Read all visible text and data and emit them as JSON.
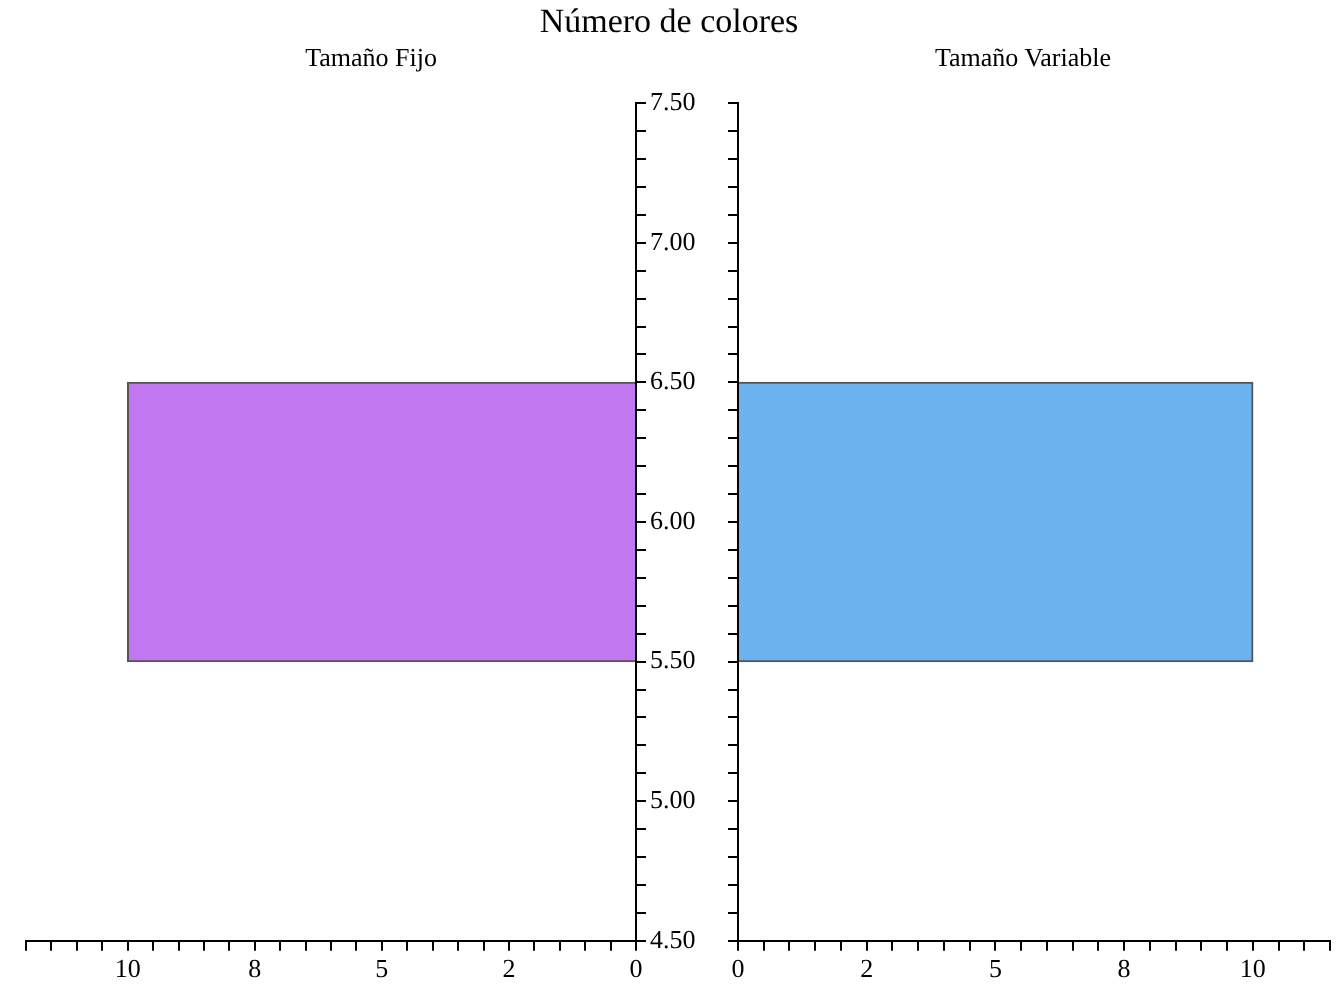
{
  "chart_data": [
    {
      "type": "bar",
      "orientation": "horizontal",
      "title": "Número de colores",
      "subtitle": "Tamaño Fijo",
      "x": [
        6
      ],
      "values": [
        10
      ],
      "color": "#c077ef",
      "xlim": [
        12,
        0
      ],
      "xticks": [
        0,
        {
          "value": 0.5,
          "label": null
        },
        {
          "value": 1,
          "label": null
        },
        {
          "value": 1.5,
          "label": null
        },
        {
          "value": 2,
          "label": null
        },
        {
          "value": 2.5,
          "label": "2"
        },
        {
          "value": 3,
          "label": null
        },
        {
          "value": 3.5,
          "label": null
        },
        {
          "value": 4,
          "label": null
        },
        {
          "value": 4.5,
          "label": null
        },
        5,
        {
          "value": 5.5,
          "label": null
        },
        {
          "value": 6,
          "label": null
        },
        {
          "value": 6.5,
          "label": null
        },
        {
          "value": 7,
          "label": null
        },
        {
          "value": 7.5,
          "label": "8"
        },
        {
          "value": 8,
          "label": null
        },
        {
          "value": 8.5,
          "label": null
        },
        {
          "value": 9,
          "label": null
        },
        {
          "value": 9.5,
          "label": null
        },
        10,
        {
          "value": 10.5,
          "label": null
        },
        {
          "value": 11,
          "label": null
        },
        {
          "value": 11.5,
          "label": null
        },
        {
          "value": 12,
          "label": null
        }
      ],
      "ylim": [
        4.5,
        7.5
      ],
      "yticks": [
        {
          "value": 4.5,
          "label": "4.50"
        },
        {
          "value": 4.6,
          "label": null
        },
        {
          "value": 4.7,
          "label": null
        },
        {
          "value": 4.8,
          "label": null
        },
        {
          "value": 4.9,
          "label": null
        },
        {
          "value": 5,
          "label": "5.00"
        },
        {
          "value": 5.1,
          "label": null
        },
        {
          "value": 5.2,
          "label": null
        },
        {
          "value": 5.3,
          "label": null
        },
        {
          "value": 5.4,
          "label": null
        },
        {
          "value": 5.5,
          "label": "5.50"
        },
        {
          "value": 5.6,
          "label": null
        },
        {
          "value": 5.7,
          "label": null
        },
        {
          "value": 5.8,
          "label": null
        },
        {
          "value": 5.9,
          "label": null
        },
        {
          "value": 6,
          "label": "6.00"
        },
        {
          "value": 6.1,
          "label": null
        },
        {
          "value": 6.2,
          "label": null
        },
        {
          "value": 6.3,
          "label": null
        },
        {
          "value": 6.4,
          "label": null
        },
        {
          "value": 6.5,
          "label": "6.50"
        },
        {
          "value": 6.6,
          "label": null
        },
        {
          "value": 6.7,
          "label": null
        },
        {
          "value": 6.8,
          "label": null
        },
        {
          "value": 6.9,
          "label": null
        },
        {
          "value": 7,
          "label": "7.00"
        },
        {
          "value": 7.1,
          "label": null
        },
        {
          "value": 7.2,
          "label": null
        },
        {
          "value": 7.3,
          "label": null
        },
        {
          "value": 7.4,
          "label": null
        },
        {
          "value": 7.5,
          "label": "7.50"
        }
      ],
      "grid": false
    },
    {
      "type": "bar",
      "orientation": "horizontal",
      "subtitle": "Tamaño Variable",
      "x": [
        6
      ],
      "values": [
        10
      ],
      "color": "#6ab3ee",
      "xlim": [
        0,
        11.5
      ],
      "xticks": [
        0,
        {
          "value": 0.5,
          "label": null
        },
        {
          "value": 1,
          "label": null
        },
        {
          "value": 1.5,
          "label": null
        },
        {
          "value": 2,
          "label": null
        },
        {
          "value": 2.5,
          "label": "2"
        },
        {
          "value": 3,
          "label": null
        },
        {
          "value": 3.5,
          "label": null
        },
        {
          "value": 4,
          "label": null
        },
        {
          "value": 4.5,
          "label": null
        },
        5,
        {
          "value": 5.5,
          "label": null
        },
        {
          "value": 6,
          "label": null
        },
        {
          "value": 6.5,
          "label": null
        },
        {
          "value": 7,
          "label": null
        },
        {
          "value": 7.5,
          "label": "8"
        },
        {
          "value": 8,
          "label": null
        },
        {
          "value": 8.5,
          "label": null
        },
        {
          "value": 9,
          "label": null
        },
        {
          "value": 9.5,
          "label": null
        },
        10,
        {
          "value": 10.5,
          "label": null
        },
        {
          "value": 11,
          "label": null
        },
        {
          "value": 11.5,
          "label": null
        }
      ],
      "ylim": [
        4.5,
        7.5
      ],
      "yticks": [
        {
          "value": 4.5,
          "label": null
        },
        {
          "value": 4.6,
          "label": null
        },
        {
          "value": 4.7,
          "label": null
        },
        {
          "value": 4.8,
          "label": null
        },
        {
          "value": 4.9,
          "label": null
        },
        {
          "value": 5,
          "label": null
        },
        {
          "value": 5.1,
          "label": null
        },
        {
          "value": 5.2,
          "label": null
        },
        {
          "value": 5.3,
          "label": null
        },
        {
          "value": 5.4,
          "label": null
        },
        {
          "value": 5.5,
          "label": null
        },
        {
          "value": 5.6,
          "label": null
        },
        {
          "value": 5.7,
          "label": null
        },
        {
          "value": 5.8,
          "label": null
        },
        {
          "value": 5.9,
          "label": null
        },
        {
          "value": 6,
          "label": null
        },
        {
          "value": 6.1,
          "label": null
        },
        {
          "value": 6.2,
          "label": null
        },
        {
          "value": 6.3,
          "label": null
        },
        {
          "value": 6.4,
          "label": null
        },
        {
          "value": 6.5,
          "label": null
        },
        {
          "value": 6.6,
          "label": null
        },
        {
          "value": 6.7,
          "label": null
        },
        {
          "value": 6.8,
          "label": null
        },
        {
          "value": 6.9,
          "label": null
        },
        {
          "value": 7,
          "label": null
        },
        {
          "value": 7.1,
          "label": null
        },
        {
          "value": 7.2,
          "label": null
        },
        {
          "value": 7.3,
          "label": null
        },
        {
          "value": 7.4,
          "label": null
        },
        {
          "value": 7.5,
          "label": null
        }
      ],
      "grid": false,
      "tick_labels": "x"
    }
  ]
}
